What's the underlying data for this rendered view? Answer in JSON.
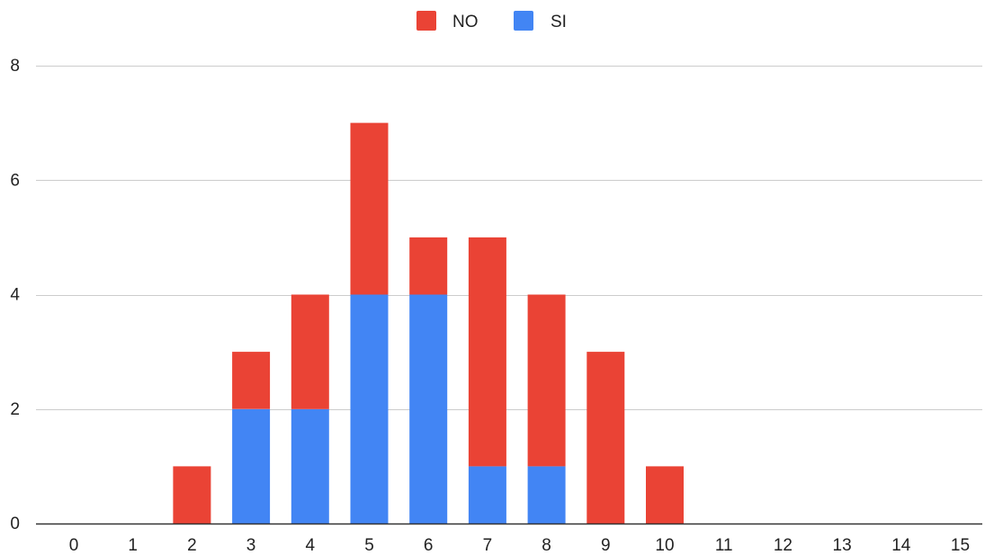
{
  "chart_data": {
    "type": "bar",
    "stacked": true,
    "categories": [
      "0",
      "1",
      "2",
      "3",
      "4",
      "5",
      "6",
      "7",
      "8",
      "9",
      "10",
      "11",
      "12",
      "13",
      "14",
      "15"
    ],
    "series": [
      {
        "name": "SI",
        "color": "#4285f4",
        "values": [
          0,
          0,
          0,
          2,
          2,
          4,
          4,
          1,
          1,
          0,
          0,
          0,
          0,
          0,
          0,
          0
        ]
      },
      {
        "name": "NO",
        "color": "#ea4335",
        "values": [
          0,
          0,
          1,
          1,
          2,
          3,
          1,
          4,
          3,
          3,
          1,
          0,
          0,
          0,
          0,
          0
        ]
      }
    ],
    "legend_order": [
      "NO",
      "SI"
    ],
    "legend_position": "top-center",
    "ylim": [
      0,
      8
    ],
    "yticks": [
      "0",
      "2",
      "4",
      "6",
      "8"
    ],
    "grid": true,
    "gridline_color": "#cccccc",
    "baseline_color": "#333333",
    "title": "",
    "xlabel": "",
    "ylabel": ""
  }
}
